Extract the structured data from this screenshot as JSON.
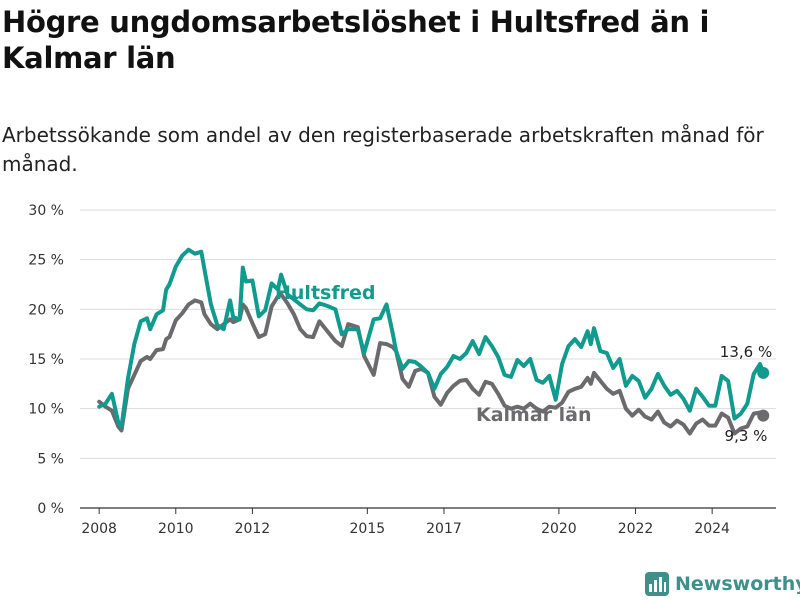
{
  "header": {
    "title": "Högre ungdomsarbetslöshet i Hultsfred än i Kalmar län",
    "subtitle": "Arbetssökande som andel av den registerbaserade arbetskraften månad för månad."
  },
  "brand": {
    "name": "Newsworthy",
    "icon": "bar-chart-logo-icon",
    "color": "#3f8f8b"
  },
  "chart_data": {
    "type": "line",
    "ylim": [
      0,
      30
    ],
    "yticks": [
      0,
      5,
      10,
      15,
      20,
      25,
      30
    ],
    "ytick_labels": [
      "0 %",
      "5 %",
      "10 %",
      "15 %",
      "20 %",
      "25 %",
      "30 %"
    ],
    "xlim": [
      "2007-07",
      "2025-09"
    ],
    "xticks": [
      "2008",
      "2010",
      "2012",
      "2015",
      "2017",
      "2020",
      "2022",
      "2024"
    ],
    "grid": true,
    "legend": "inline-labels",
    "series": [
      {
        "name": "Hultsfred",
        "color": "#119b8f",
        "end_label": "13,6 %",
        "points": [
          [
            "2008-01",
            10.2
          ],
          [
            "2008-03",
            10.5
          ],
          [
            "2008-05",
            11.5
          ],
          [
            "2008-07",
            8.6
          ],
          [
            "2008-08",
            8.2
          ],
          [
            "2008-10",
            13.0
          ],
          [
            "2008-12",
            16.5
          ],
          [
            "2009-02",
            18.8
          ],
          [
            "2009-04",
            19.1
          ],
          [
            "2009-05",
            18.0
          ],
          [
            "2009-07",
            19.5
          ],
          [
            "2009-09",
            19.9
          ],
          [
            "2009-10",
            22.0
          ],
          [
            "2009-11",
            22.5
          ],
          [
            "2010-01",
            24.3
          ],
          [
            "2010-03",
            25.4
          ],
          [
            "2010-05",
            26.0
          ],
          [
            "2010-07",
            25.6
          ],
          [
            "2010-09",
            25.8
          ],
          [
            "2010-10",
            24.0
          ],
          [
            "2010-12",
            20.5
          ],
          [
            "2011-02",
            18.4
          ],
          [
            "2011-04",
            18.0
          ],
          [
            "2011-06",
            20.9
          ],
          [
            "2011-07",
            19.2
          ],
          [
            "2011-09",
            19.0
          ],
          [
            "2011-10",
            24.2
          ],
          [
            "2011-11",
            22.8
          ],
          [
            "2012-01",
            22.9
          ],
          [
            "2012-03",
            19.3
          ],
          [
            "2012-05",
            19.9
          ],
          [
            "2012-07",
            22.6
          ],
          [
            "2012-09",
            22.0
          ],
          [
            "2012-10",
            23.5
          ],
          [
            "2012-12",
            21.5
          ],
          [
            "2013-02",
            21.0
          ],
          [
            "2013-04",
            20.5
          ],
          [
            "2013-06",
            20.0
          ],
          [
            "2013-08",
            19.9
          ],
          [
            "2013-10",
            20.6
          ],
          [
            "2013-12",
            20.4
          ],
          [
            "2014-03",
            20.0
          ],
          [
            "2014-05",
            17.5
          ],
          [
            "2014-07",
            18.0
          ],
          [
            "2014-10",
            18.0
          ],
          [
            "2014-12",
            15.6
          ],
          [
            "2015-03",
            19.0
          ],
          [
            "2015-05",
            19.1
          ],
          [
            "2015-07",
            20.5
          ],
          [
            "2015-09",
            17.5
          ],
          [
            "2015-10",
            15.8
          ],
          [
            "2015-12",
            14.0
          ],
          [
            "2016-02",
            14.8
          ],
          [
            "2016-04",
            14.7
          ],
          [
            "2016-06",
            14.2
          ],
          [
            "2016-08",
            13.6
          ],
          [
            "2016-10",
            12.0
          ],
          [
            "2016-12",
            13.5
          ],
          [
            "2017-02",
            14.2
          ],
          [
            "2017-04",
            15.3
          ],
          [
            "2017-06",
            15.0
          ],
          [
            "2017-08",
            15.6
          ],
          [
            "2017-10",
            16.8
          ],
          [
            "2017-12",
            15.5
          ],
          [
            "2018-02",
            17.2
          ],
          [
            "2018-04",
            16.3
          ],
          [
            "2018-06",
            15.2
          ],
          [
            "2018-08",
            13.4
          ],
          [
            "2018-10",
            13.2
          ],
          [
            "2018-12",
            14.9
          ],
          [
            "2019-02",
            14.3
          ],
          [
            "2019-04",
            15.0
          ],
          [
            "2019-06",
            12.9
          ],
          [
            "2019-08",
            12.6
          ],
          [
            "2019-10",
            13.3
          ],
          [
            "2019-12",
            10.9
          ],
          [
            "2020-02",
            14.5
          ],
          [
            "2020-04",
            16.3
          ],
          [
            "2020-06",
            17.0
          ],
          [
            "2020-08",
            16.2
          ],
          [
            "2020-10",
            17.8
          ],
          [
            "2020-11",
            16.5
          ],
          [
            "2020-12",
            18.1
          ],
          [
            "2021-02",
            15.8
          ],
          [
            "2021-04",
            15.6
          ],
          [
            "2021-06",
            14.1
          ],
          [
            "2021-08",
            15.0
          ],
          [
            "2021-10",
            12.3
          ],
          [
            "2021-12",
            13.3
          ],
          [
            "2022-02",
            12.8
          ],
          [
            "2022-04",
            11.1
          ],
          [
            "2022-06",
            12.0
          ],
          [
            "2022-08",
            13.5
          ],
          [
            "2022-10",
            12.3
          ],
          [
            "2022-12",
            11.4
          ],
          [
            "2023-02",
            11.8
          ],
          [
            "2023-04",
            11.0
          ],
          [
            "2023-06",
            9.8
          ],
          [
            "2023-08",
            12.0
          ],
          [
            "2023-10",
            11.2
          ],
          [
            "2023-12",
            10.3
          ],
          [
            "2024-02",
            10.3
          ],
          [
            "2024-04",
            13.3
          ],
          [
            "2024-06",
            12.8
          ],
          [
            "2024-08",
            9.0
          ],
          [
            "2024-10",
            9.5
          ],
          [
            "2024-12",
            10.5
          ],
          [
            "2025-02",
            13.5
          ],
          [
            "2025-04",
            14.5
          ],
          [
            "2025-05",
            13.6
          ]
        ]
      },
      {
        "name": "Kalmar län",
        "color": "#6b6b6e",
        "end_label": "9,3 %",
        "points": [
          [
            "2008-01",
            10.7
          ],
          [
            "2008-03",
            10.2
          ],
          [
            "2008-05",
            9.8
          ],
          [
            "2008-07",
            8.2
          ],
          [
            "2008-08",
            7.8
          ],
          [
            "2008-10",
            12.0
          ],
          [
            "2008-12",
            13.4
          ],
          [
            "2009-02",
            14.8
          ],
          [
            "2009-04",
            15.2
          ],
          [
            "2009-05",
            15.0
          ],
          [
            "2009-07",
            15.9
          ],
          [
            "2009-09",
            16.0
          ],
          [
            "2009-10",
            17.0
          ],
          [
            "2009-11",
            17.2
          ],
          [
            "2010-01",
            18.9
          ],
          [
            "2010-03",
            19.6
          ],
          [
            "2010-05",
            20.5
          ],
          [
            "2010-07",
            20.9
          ],
          [
            "2010-09",
            20.7
          ],
          [
            "2010-10",
            19.5
          ],
          [
            "2010-12",
            18.5
          ],
          [
            "2011-02",
            18.0
          ],
          [
            "2011-04",
            18.5
          ],
          [
            "2011-06",
            19.0
          ],
          [
            "2011-07",
            18.7
          ],
          [
            "2011-09",
            19.0
          ],
          [
            "2011-10",
            20.5
          ],
          [
            "2011-11",
            20.1
          ],
          [
            "2012-01",
            18.6
          ],
          [
            "2012-03",
            17.2
          ],
          [
            "2012-05",
            17.5
          ],
          [
            "2012-07",
            20.3
          ],
          [
            "2012-09",
            21.3
          ],
          [
            "2012-10",
            21.5
          ],
          [
            "2012-12",
            20.6
          ],
          [
            "2013-02",
            19.5
          ],
          [
            "2013-04",
            18.0
          ],
          [
            "2013-06",
            17.3
          ],
          [
            "2013-08",
            17.2
          ],
          [
            "2013-10",
            18.8
          ],
          [
            "2013-12",
            18.0
          ],
          [
            "2014-03",
            16.8
          ],
          [
            "2014-05",
            16.3
          ],
          [
            "2014-07",
            18.5
          ],
          [
            "2014-10",
            18.2
          ],
          [
            "2014-12",
            15.3
          ],
          [
            "2015-03",
            13.4
          ],
          [
            "2015-05",
            16.6
          ],
          [
            "2015-07",
            16.5
          ],
          [
            "2015-09",
            16.2
          ],
          [
            "2015-10",
            15.8
          ],
          [
            "2015-12",
            13.0
          ],
          [
            "2016-02",
            12.2
          ],
          [
            "2016-04",
            13.8
          ],
          [
            "2016-06",
            14.0
          ],
          [
            "2016-08",
            13.6
          ],
          [
            "2016-10",
            11.2
          ],
          [
            "2016-12",
            10.4
          ],
          [
            "2017-02",
            11.6
          ],
          [
            "2017-04",
            12.3
          ],
          [
            "2017-06",
            12.8
          ],
          [
            "2017-08",
            12.9
          ],
          [
            "2017-10",
            12.0
          ],
          [
            "2017-12",
            11.4
          ],
          [
            "2018-02",
            12.7
          ],
          [
            "2018-04",
            12.5
          ],
          [
            "2018-06",
            11.5
          ],
          [
            "2018-08",
            10.3
          ],
          [
            "2018-10",
            10.0
          ],
          [
            "2018-12",
            10.2
          ],
          [
            "2019-02",
            10.0
          ],
          [
            "2019-04",
            10.5
          ],
          [
            "2019-06",
            10.0
          ],
          [
            "2019-08",
            9.7
          ],
          [
            "2019-10",
            10.2
          ],
          [
            "2019-12",
            10.1
          ],
          [
            "2020-02",
            10.6
          ],
          [
            "2020-04",
            11.7
          ],
          [
            "2020-06",
            12.0
          ],
          [
            "2020-08",
            12.2
          ],
          [
            "2020-10",
            13.1
          ],
          [
            "2020-11",
            12.5
          ],
          [
            "2020-12",
            13.6
          ],
          [
            "2021-02",
            12.8
          ],
          [
            "2021-04",
            12.0
          ],
          [
            "2021-06",
            11.5
          ],
          [
            "2021-08",
            11.8
          ],
          [
            "2021-10",
            10.0
          ],
          [
            "2021-12",
            9.3
          ],
          [
            "2022-02",
            9.9
          ],
          [
            "2022-04",
            9.2
          ],
          [
            "2022-06",
            8.9
          ],
          [
            "2022-08",
            9.7
          ],
          [
            "2022-10",
            8.6
          ],
          [
            "2022-12",
            8.2
          ],
          [
            "2023-02",
            8.8
          ],
          [
            "2023-04",
            8.4
          ],
          [
            "2023-06",
            7.5
          ],
          [
            "2023-08",
            8.5
          ],
          [
            "2023-10",
            8.9
          ],
          [
            "2023-12",
            8.3
          ],
          [
            "2024-02",
            8.3
          ],
          [
            "2024-04",
            9.5
          ],
          [
            "2024-06",
            9.1
          ],
          [
            "2024-08",
            7.5
          ],
          [
            "2024-10",
            8.0
          ],
          [
            "2024-12",
            8.2
          ],
          [
            "2025-02",
            9.5
          ],
          [
            "2025-04",
            9.6
          ],
          [
            "2025-05",
            9.3
          ]
        ]
      }
    ]
  }
}
